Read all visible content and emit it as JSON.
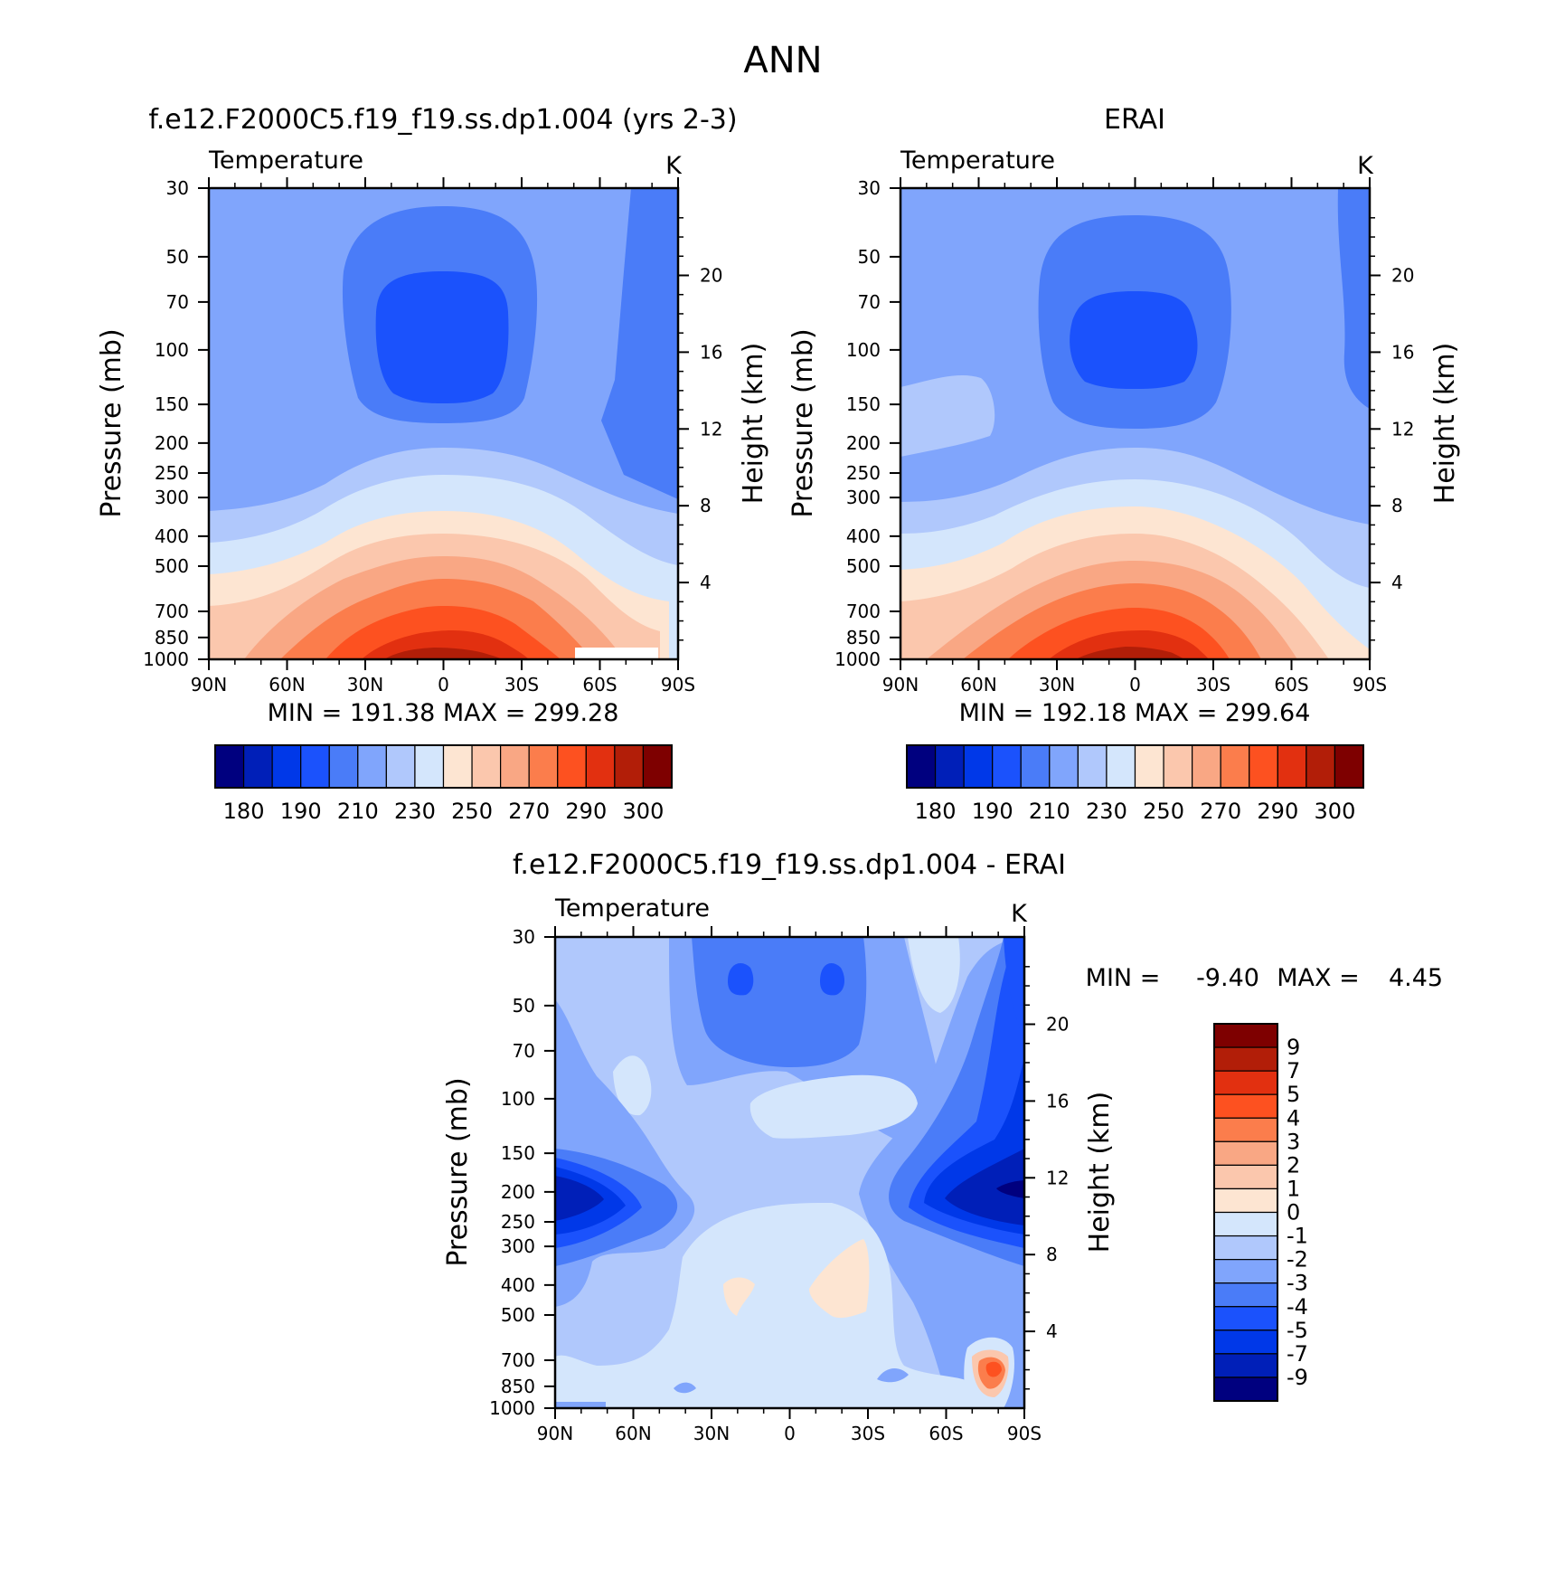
{
  "figure": {
    "title": "ANN",
    "colors": {
      "abs_palette": [
        "#00007f",
        "#001fb8",
        "#0038e8",
        "#1b52fc",
        "#4a7cf8",
        "#80a5fc",
        "#b0c8fc",
        "#d4e6fc",
        "#fde5d2",
        "#fbc7ad",
        "#f9a784",
        "#fb7d4c",
        "#fd5120",
        "#e23010",
        "#b21e08",
        "#7e0000"
      ],
      "diff_palette": [
        "#00007f",
        "#001fb8",
        "#0038e8",
        "#1b52fc",
        "#4a7cf8",
        "#80a5fc",
        "#b0c8fc",
        "#d4e6fc",
        "#fde5d2",
        "#fbc7ad",
        "#f9a784",
        "#fb7d4c",
        "#fd5120",
        "#e23010",
        "#b21e08",
        "#7e0000"
      ]
    }
  },
  "chart_data": [
    {
      "type": "contour",
      "id": "model",
      "title": "f.e12.F2000C5.f19_f19.ss.dp1.004 (yrs 2-3)",
      "variable": "Temperature",
      "units": "K",
      "xlabel": "",
      "ylabel": "Pressure (mb)",
      "y2label": "Height (km)",
      "x_ticks": [
        "90N",
        "60N",
        "30N",
        "0",
        "30S",
        "60S",
        "90S"
      ],
      "x_values": [
        90,
        60,
        30,
        0,
        -30,
        -60,
        -90
      ],
      "y_ticks": [
        "30",
        "50",
        "70",
        "100",
        "150",
        "200",
        "250",
        "300",
        "400",
        "500",
        "700",
        "850",
        "1000"
      ],
      "y_values": [
        30,
        50,
        70,
        100,
        150,
        200,
        250,
        300,
        400,
        500,
        700,
        850,
        1000
      ],
      "y2_ticks": [
        "20",
        "16",
        "12",
        "8",
        "4"
      ],
      "y2_values": [
        20,
        16,
        12,
        8,
        4
      ],
      "ylim": [
        1000,
        30
      ],
      "min_max": "MIN = 191.38   MAX = 299.28",
      "min": 191.38,
      "max": 299.28,
      "levels": [
        180,
        185,
        190,
        200,
        210,
        220,
        230,
        240,
        250,
        260,
        270,
        280,
        290,
        295,
        300
      ],
      "colorbar_labels": [
        "180",
        "190",
        "210",
        "230",
        "250",
        "270",
        "290",
        "300"
      ]
    },
    {
      "type": "contour",
      "id": "obs",
      "title": "ERAI",
      "variable": "Temperature",
      "units": "K",
      "xlabel": "",
      "ylabel": "Pressure (mb)",
      "y2label": "Height (km)",
      "x_ticks": [
        "90N",
        "60N",
        "30N",
        "0",
        "30S",
        "60S",
        "90S"
      ],
      "x_values": [
        90,
        60,
        30,
        0,
        -30,
        -60,
        -90
      ],
      "y_ticks": [
        "30",
        "50",
        "70",
        "100",
        "150",
        "200",
        "250",
        "300",
        "400",
        "500",
        "700",
        "850",
        "1000"
      ],
      "y_values": [
        30,
        50,
        70,
        100,
        150,
        200,
        250,
        300,
        400,
        500,
        700,
        850,
        1000
      ],
      "y2_ticks": [
        "20",
        "16",
        "12",
        "8",
        "4"
      ],
      "y2_values": [
        20,
        16,
        12,
        8,
        4
      ],
      "ylim": [
        1000,
        30
      ],
      "min_max": "MIN = 192.18   MAX = 299.64",
      "min": 192.18,
      "max": 299.64,
      "levels": [
        180,
        185,
        190,
        200,
        210,
        220,
        230,
        240,
        250,
        260,
        270,
        280,
        290,
        295,
        300
      ],
      "colorbar_labels": [
        "180",
        "190",
        "210",
        "230",
        "250",
        "270",
        "290",
        "300"
      ]
    },
    {
      "type": "contour",
      "id": "diff",
      "title": "f.e12.F2000C5.f19_f19.ss.dp1.004 - ERAI",
      "variable": "Temperature",
      "units": "K",
      "xlabel": "",
      "ylabel": "Pressure (mb)",
      "y2label": "Height (km)",
      "x_ticks": [
        "90N",
        "60N",
        "30N",
        "0",
        "30S",
        "60S",
        "90S"
      ],
      "x_values": [
        90,
        60,
        30,
        0,
        -30,
        -60,
        -90
      ],
      "y_ticks": [
        "30",
        "50",
        "70",
        "100",
        "150",
        "200",
        "250",
        "300",
        "400",
        "500",
        "700",
        "850",
        "1000"
      ],
      "y_values": [
        30,
        50,
        70,
        100,
        150,
        200,
        250,
        300,
        400,
        500,
        700,
        850,
        1000
      ],
      "y2_ticks": [
        "20",
        "16",
        "12",
        "8",
        "4"
      ],
      "y2_values": [
        20,
        16,
        12,
        8,
        4
      ],
      "ylim": [
        1000,
        30
      ],
      "min_label": "MIN =",
      "min_value": "-9.40",
      "max_label": "MAX =",
      "max_value": "4.45",
      "min": -9.4,
      "max": 4.45,
      "levels": [
        -9,
        -7,
        -5,
        -4,
        -3,
        -2,
        -1,
        0,
        1,
        2,
        3,
        4,
        5,
        7,
        9
      ],
      "colorbar_labels": [
        "9",
        "7",
        "5",
        "4",
        "3",
        "2",
        "1",
        "0",
        "-1",
        "-2",
        "-3",
        "-4",
        "-5",
        "-7",
        "-9"
      ]
    }
  ]
}
